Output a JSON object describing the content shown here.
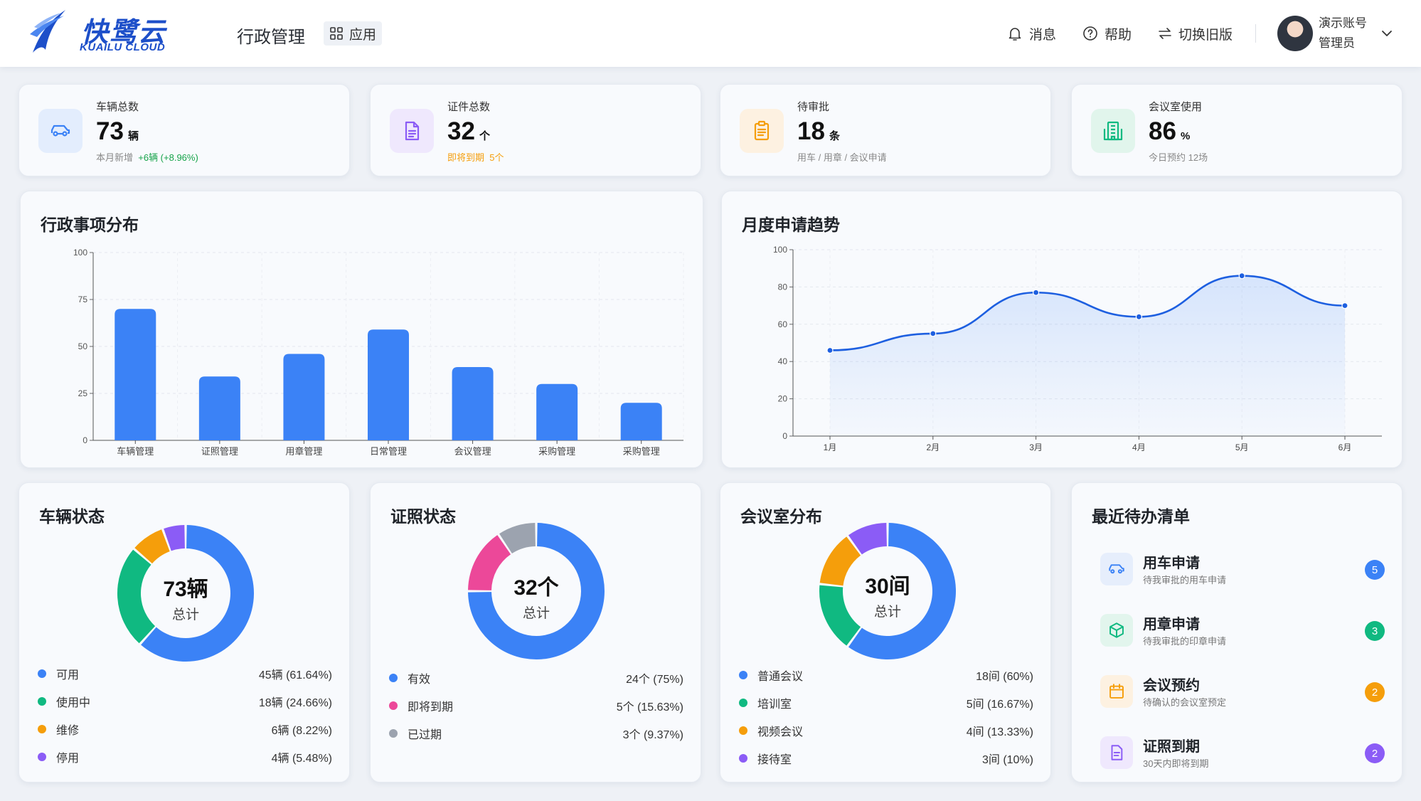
{
  "header": {
    "logo_cn": "快鹭云",
    "logo_en": "KUAILU CLOUD",
    "system_title": "行政管理",
    "apps_label": "应用",
    "messages_label": "消息",
    "help_label": "帮助",
    "switch_label": "切换旧版",
    "user_name": "演示账号",
    "user_role": "管理员"
  },
  "stats": [
    {
      "label": "车辆总数",
      "value": "73",
      "unit": "辆",
      "note_prefix": "本月新增",
      "note_highlight": "+6辆 (+8.96%)",
      "icon": "car-icon",
      "color": "#3b82f6",
      "bg": "#e3edfd"
    },
    {
      "label": "证件总数",
      "value": "32",
      "unit": "个",
      "note_prefix": "即将到期",
      "note_highlight": "5个",
      "icon": "document-icon",
      "color": "#8b5cf6",
      "bg": "#efe8fd"
    },
    {
      "label": "待审批",
      "value": "18",
      "unit": "条",
      "note_prefix": "用车 / 用章 / 会议申请",
      "note_highlight": "",
      "icon": "clipboard-icon",
      "color": "#f59e0b",
      "bg": "#fdf1e1"
    },
    {
      "label": "会议室使用",
      "value": "86",
      "unit": "%",
      "note_prefix": "今日预约 12场",
      "note_highlight": "",
      "icon": "building-icon",
      "color": "#10b981",
      "bg": "#e1f5ec"
    }
  ],
  "bar_card": {
    "title": "行政事项分布"
  },
  "line_card": {
    "title": "月度申请趋势"
  },
  "chart_data": [
    {
      "type": "bar",
      "title": "行政事项分布",
      "categories": [
        "车辆管理",
        "证照管理",
        "用章管理",
        "日常管理",
        "会议管理",
        "采购管理",
        "采购管理"
      ],
      "values": [
        70,
        34,
        46,
        59,
        39,
        30,
        20
      ],
      "ylim": [
        0,
        100
      ],
      "yticks": [
        0,
        25,
        50,
        75,
        100
      ],
      "grid": true,
      "color": "#3b82f6"
    },
    {
      "type": "line",
      "title": "月度申请趋势",
      "x": [
        "1月",
        "2月",
        "3月",
        "4月",
        "5月",
        "6月"
      ],
      "values": [
        46,
        55,
        77,
        64,
        86,
        70
      ],
      "ylim": [
        0,
        100
      ],
      "yticks": [
        0,
        20,
        40,
        60,
        80,
        100
      ],
      "grid": true,
      "smooth": true,
      "area": true,
      "color": "#1d5fe0"
    },
    {
      "type": "pie",
      "title": "车辆状态",
      "center_main": "73辆",
      "center_sub": "总计",
      "series": [
        {
          "name": "可用",
          "value": 45,
          "display": "45辆 (61.64%)",
          "color": "#3b82f6"
        },
        {
          "name": "使用中",
          "value": 18,
          "display": "18辆 (24.66%)",
          "color": "#10b981"
        },
        {
          "name": "维修",
          "value": 6,
          "display": "6辆 (8.22%)",
          "color": "#f59e0b"
        },
        {
          "name": "停用",
          "value": 4,
          "display": "4辆 (5.48%)",
          "color": "#8b5cf6"
        }
      ]
    },
    {
      "type": "pie",
      "title": "证照状态",
      "center_main": "32个",
      "center_sub": "总计",
      "series": [
        {
          "name": "有效",
          "value": 24,
          "display": "24个 (75%)",
          "color": "#3b82f6"
        },
        {
          "name": "即将到期",
          "value": 5,
          "display": "5个 (15.63%)",
          "color": "#ec4899"
        },
        {
          "name": "已过期",
          "value": 3,
          "display": "3个 (9.37%)",
          "color": "#9ca3af"
        }
      ]
    },
    {
      "type": "pie",
      "title": "会议室分布",
      "center_main": "30间",
      "center_sub": "总计",
      "series": [
        {
          "name": "普通会议",
          "value": 18,
          "display": "18间 (60%)",
          "color": "#3b82f6"
        },
        {
          "name": "培训室",
          "value": 5,
          "display": "5间 (16.67%)",
          "color": "#10b981"
        },
        {
          "name": "视频会议",
          "value": 4,
          "display": "4间 (13.33%)",
          "color": "#f59e0b"
        },
        {
          "name": "接待室",
          "value": 3,
          "display": "3间 (10%)",
          "color": "#8b5cf6"
        }
      ]
    }
  ],
  "todo_card": {
    "title": "最近待办清单",
    "items": [
      {
        "title": "用车申请",
        "sub": "待我审批的用车申请",
        "count": "5",
        "icon": "car-icon",
        "color": "#3b82f6",
        "bg": "#e6eefc"
      },
      {
        "title": "用章申请",
        "sub": "待我审批的印章申请",
        "count": "3",
        "icon": "stamp-icon",
        "color": "#10b981",
        "bg": "#e2f5ed"
      },
      {
        "title": "会议预约",
        "sub": "待确认的会议室预定",
        "count": "2",
        "icon": "calendar-icon",
        "color": "#f59e0b",
        "bg": "#fdf1e1"
      },
      {
        "title": "证照到期",
        "sub": "30天内即将到期",
        "count": "2",
        "icon": "document-icon",
        "color": "#8b5cf6",
        "bg": "#efe8fd"
      }
    ]
  }
}
